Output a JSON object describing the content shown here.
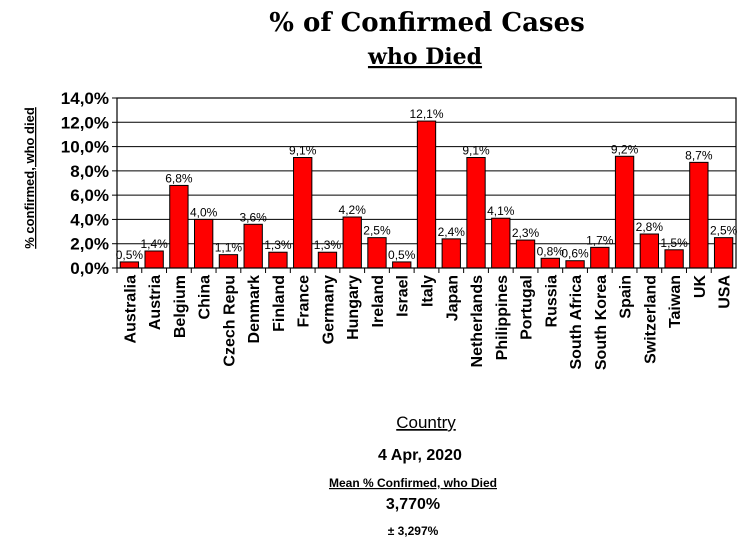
{
  "chart_data": {
    "type": "bar",
    "title": "% of Confirmed Cases",
    "subtitle": "who Died",
    "ylabel": "% confirmed, who died",
    "xlabel": "Country",
    "ylim": [
      0,
      14
    ],
    "yticks": [
      0,
      2,
      4,
      6,
      8,
      10,
      12,
      14
    ],
    "ytick_labels": [
      "0,0%",
      "2,0%",
      "4,0%",
      "6,0%",
      "8,0%",
      "10,0%",
      "12,0%",
      "14,0%"
    ],
    "grid": true,
    "categories": [
      "Australia",
      "Austria",
      "Belgium",
      "China",
      "Czech Repu",
      "Denmark",
      "Finland",
      "France",
      "Germany",
      "Hungary",
      "Ireland",
      "Israel",
      "Italy",
      "Japan",
      "Netherlands",
      "Philippines",
      "Portugal",
      "Russia",
      "South Africa",
      "South Korea",
      "Spain",
      "Switzerland",
      "Taiwan",
      "UK",
      "USA"
    ],
    "values": [
      0.5,
      1.4,
      6.8,
      4.0,
      1.1,
      3.6,
      1.3,
      9.1,
      1.3,
      4.2,
      2.5,
      0.5,
      12.1,
      2.4,
      9.1,
      4.1,
      2.3,
      0.8,
      0.6,
      1.7,
      9.2,
      2.8,
      1.5,
      8.7,
      2.5
    ],
    "data_labels": [
      "0,5%",
      "1,4%",
      "6,8%",
      "4,0%",
      "1,1%",
      "3,6%",
      "1,3%",
      "9,1%",
      "1,3%",
      "4,2%",
      "2,5%",
      "0,5%",
      "12,1%",
      "2,4%",
      "9,1%",
      "4,1%",
      "2,3%",
      "0,8%",
      "0,6%",
      "1,7%",
      "9,2%",
      "2,8%",
      "1,5%",
      "8,7%",
      "2,5%"
    ],
    "bar_color": "#ff0000",
    "footer": {
      "date": "4 Apr, 2020",
      "mean_label": "Mean % Confirmed, who Died",
      "mean_value": "3,770%",
      "sd_value": "± 3,297%"
    }
  }
}
